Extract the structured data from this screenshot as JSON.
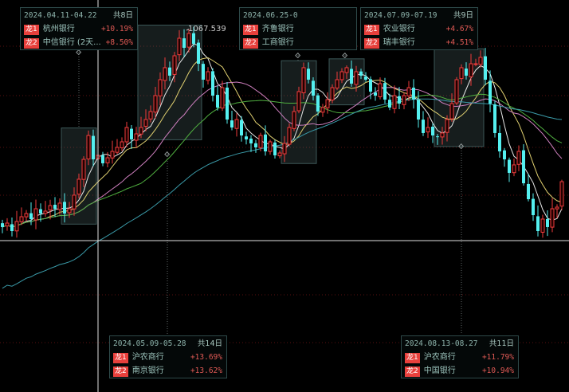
{
  "chart_data": {
    "type": "candlestick",
    "title": "",
    "xlabel": "",
    "ylabel": "",
    "peak_label": "1067.539",
    "colors": {
      "up": "#f03c3c",
      "down": "#54f0f0",
      "ma": [
        "#e8e8e8",
        "#e0d070",
        "#d080c0",
        "#50b040",
        "#3a9aa8"
      ],
      "grid": "#5a1010",
      "crosshair": "#e0e0e0"
    },
    "ma_periods": [
      5,
      10,
      20,
      30,
      60
    ],
    "grid": true,
    "close": [
      758.8,
      765,
      752.5,
      767.5,
      775,
      780,
      771.3,
      787.5,
      780,
      783.8,
      792.5,
      787.5,
      796.3,
      780,
      787.5,
      808.8,
      833.8,
      865,
      902.5,
      865,
      871.3,
      858.8,
      867.5,
      877.5,
      883.8,
      892.5,
      915,
      896.3,
      905,
      915,
      927.5,
      940,
      965,
      990,
      1008.8,
      996.3,
      1027.5,
      1055,
      1040,
      1062.5,
      1046.3,
      1015,
      990,
      1002.5,
      965,
      946.3,
      977.5,
      927.5,
      915,
      927.5,
      902.5,
      896.3,
      890,
      883.8,
      902.5,
      877.5,
      892.5,
      871.3,
      875,
      890,
      915,
      940,
      971.3,
      1008.8,
      990,
      965,
      940,
      946.3,
      958.8,
      977.5,
      990,
      1002.5,
      1008.8,
      983.8,
      1002.5,
      996.3,
      990,
      971.3,
      965,
      983.8,
      958.8,
      946.3,
      965,
      952.5,
      965,
      977.5,
      958.8,
      927.5,
      906.3,
      915,
      902.5,
      900,
      906.3,
      927.5,
      952.5,
      990,
      1008.8,
      996.3,
      1015,
      1015,
      1025,
      990,
      952.5,
      906.3,
      877.5,
      865,
      843.8,
      856.3,
      877.5,
      827.5,
      802.5,
      777.5,
      752.5,
      771.3,
      758.8,
      787.5,
      790,
      830
    ],
    "highlight_ranges": [
      {
        "start": 13,
        "end": 19
      },
      {
        "start": 29,
        "end": 41
      },
      {
        "start": 59,
        "end": 65
      },
      {
        "start": 69,
        "end": 75
      },
      {
        "start": 91,
        "end": 100
      }
    ]
  },
  "annotations": [
    {
      "range": "2024.04.11-04.22",
      "days": "共8日",
      "leaders": [
        {
          "badge": "龙1",
          "name": "杭州银行",
          "pct": "+10.19%"
        },
        {
          "badge": "龙2",
          "name": "中信银行 (2天...",
          "pct": "+8.50%"
        }
      ]
    },
    {
      "range": "2024.06.25-0",
      "days": "",
      "leaders": [
        {
          "badge": "龙1",
          "name": "齐鲁银行",
          "pct": ""
        },
        {
          "badge": "龙2",
          "name": "工商银行",
          "pct": ""
        }
      ]
    },
    {
      "range": "2024.07.09-07.19",
      "days": "共9日",
      "leaders": [
        {
          "badge": "龙1",
          "name": "农业银行",
          "pct": "+4.67%"
        },
        {
          "badge": "龙2",
          "name": "瑞丰银行",
          "pct": "+4.51%"
        }
      ]
    },
    {
      "range": "2024.05.09-05.28",
      "days": "共14日",
      "leaders": [
        {
          "badge": "龙1",
          "name": "沪农商行",
          "pct": "+13.69%"
        },
        {
          "badge": "龙2",
          "name": "南京银行",
          "pct": "+13.62%"
        }
      ]
    },
    {
      "range": "2024.08.13-08.27",
      "days": "共11日",
      "leaders": [
        {
          "badge": "龙1",
          "name": "沪农商行",
          "pct": "+11.79%"
        },
        {
          "badge": "龙2",
          "name": "中国银行",
          "pct": "+10.94%"
        }
      ]
    }
  ]
}
